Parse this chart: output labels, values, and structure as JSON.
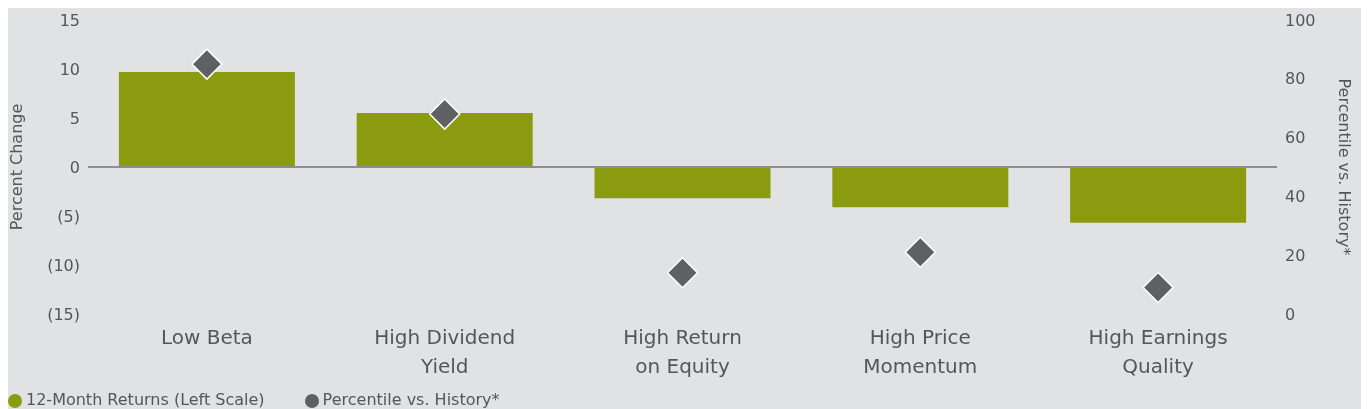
{
  "chart_data": {
    "type": "bar",
    "categories": [
      "Low Beta",
      "High Dividend Yield",
      "High Return on Equity",
      "High Price Momentum",
      "High Earnings Quality"
    ],
    "series": [
      {
        "name": "12-Month Returns (Left Scale)",
        "color": "#8a9b0f",
        "values": [
          9.7,
          5.5,
          -3.2,
          -4.1,
          -5.7
        ]
      },
      {
        "name": "Percentile vs. History*",
        "type": "scatter",
        "axis": "y2",
        "color": "#5f6063",
        "values": [
          85,
          68,
          14,
          21,
          9
        ]
      }
    ],
    "ylabel": "Percent Change",
    "y2label": "Percentile vs. History*",
    "ylim": [
      -15,
      15
    ],
    "yticks": [
      {
        "value": -15,
        "label": "(15)"
      },
      {
        "value": -10,
        "label": "(10)"
      },
      {
        "value": -5,
        "label": "(5)"
      },
      0,
      5,
      10,
      15
    ],
    "y2lim": [
      0,
      100
    ],
    "y2ticks": [
      0,
      20,
      40,
      60,
      80,
      100
    ],
    "ref_lines": [
      {
        "axis": "y",
        "value": 0,
        "color": "#8c8d90"
      }
    ],
    "marker": "diamond",
    "grid": false,
    "legend": "bottom left"
  }
}
